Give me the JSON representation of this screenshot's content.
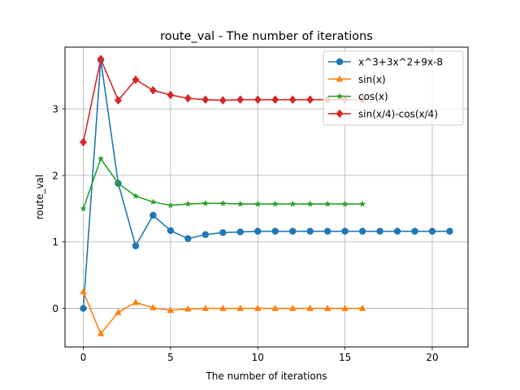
{
  "chart_data": {
    "type": "line",
    "title": "route_val - The number of iterations",
    "xlabel": "The number of iterations",
    "ylabel": "route_val",
    "xlim": [
      -1.05,
      22.05
    ],
    "ylim": [
      -0.58,
      3.93
    ],
    "xticks": [
      0,
      5,
      10,
      15,
      20
    ],
    "yticks": [
      0,
      1,
      2,
      3
    ],
    "grid": true,
    "legend_position": "top-right",
    "series": [
      {
        "name": "x^3+3x^2+9x-8",
        "color": "#1f77b4",
        "marker": "circle",
        "x": [
          0,
          1,
          2,
          3,
          4,
          5,
          6,
          7,
          8,
          9,
          10,
          11,
          12,
          13,
          14,
          15,
          16,
          17,
          18,
          19,
          20,
          21
        ],
        "y": [
          0.0,
          3.74,
          1.88,
          0.94,
          1.4,
          1.17,
          1.05,
          1.11,
          1.14,
          1.15,
          1.16,
          1.16,
          1.16,
          1.16,
          1.16,
          1.16,
          1.16,
          1.16,
          1.16,
          1.16,
          1.16,
          1.16
        ]
      },
      {
        "name": "sin(x)",
        "color": "#ff7f0e",
        "marker": "triangle",
        "x": [
          0,
          1,
          2,
          3,
          4,
          5,
          6,
          7,
          8,
          9,
          10,
          11,
          12,
          13,
          14,
          15,
          16
        ],
        "y": [
          0.25,
          -0.38,
          -0.06,
          0.09,
          0.01,
          -0.03,
          -0.01,
          0.0,
          0.0,
          0.0,
          0.0,
          0.0,
          0.0,
          0.0,
          0.0,
          0.0,
          0.0
        ]
      },
      {
        "name": "cos(x)",
        "color": "#2ca02c",
        "marker": "star",
        "x": [
          0,
          1,
          2,
          3,
          4,
          5,
          6,
          7,
          8,
          9,
          10,
          11,
          12,
          13,
          14,
          15,
          16
        ],
        "y": [
          1.5,
          2.25,
          1.88,
          1.69,
          1.6,
          1.55,
          1.57,
          1.58,
          1.58,
          1.57,
          1.57,
          1.57,
          1.57,
          1.57,
          1.57,
          1.57,
          1.57
        ]
      },
      {
        "name": "sin(x/4)-cos(x/4)",
        "color": "#d62728",
        "marker": "diamond",
        "x": [
          0,
          1,
          2,
          3,
          4,
          5,
          6,
          7,
          8,
          9,
          10,
          11,
          12,
          13,
          14,
          15,
          16
        ],
        "y": [
          2.5,
          3.75,
          3.13,
          3.44,
          3.28,
          3.21,
          3.16,
          3.14,
          3.13,
          3.14,
          3.14,
          3.14,
          3.14,
          3.14,
          3.14,
          3.14,
          3.14
        ]
      }
    ]
  }
}
